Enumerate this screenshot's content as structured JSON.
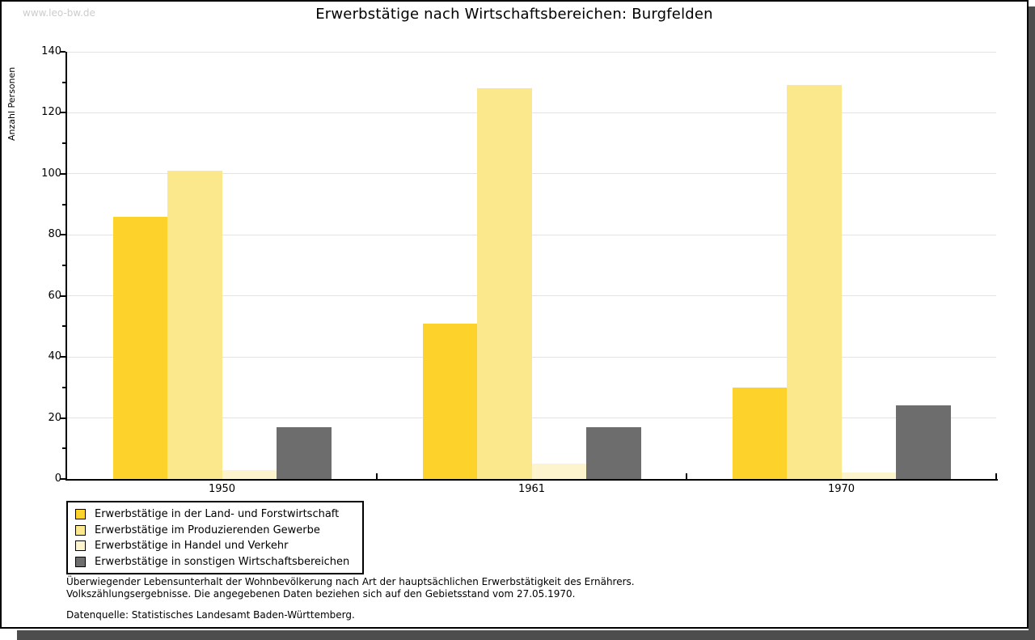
{
  "watermark": "www.leo-bw.de",
  "chart_data": {
    "type": "bar",
    "title": "Erwerbstätige nach Wirtschaftsbereichen: Burgfelden",
    "ylabel": "Anzahl Personen",
    "xlabel": "",
    "categories": [
      "1950",
      "1961",
      "1970"
    ],
    "series": [
      {
        "name": "Erwerbstätige in der Land- und Forstwirtschaft",
        "color": "#fcd22b",
        "values": [
          86,
          51,
          30
        ]
      },
      {
        "name": "Erwerbstätige im Produzierenden Gewerbe",
        "color": "#fbe78c",
        "values": [
          101,
          128,
          129
        ]
      },
      {
        "name": "Erwerbstätige in Handel und Verkehr",
        "color": "#fdf4ce",
        "values": [
          3,
          5,
          2
        ]
      },
      {
        "name": "Erwerbstätige in sonstigen Wirtschaftsbereichen",
        "color": "#6d6d6d",
        "values": [
          17,
          17,
          24
        ]
      }
    ],
    "ylim": [
      0,
      140
    ],
    "ytick_step": 20,
    "minor_tick_step": 10,
    "grid": "horizontal",
    "legend_position": "bottom-left",
    "gridline_color": "#e3e3e3"
  },
  "footnotes": {
    "line1": "Überwiegender Lebensunterhalt der Wohnbevölkerung nach Art der hauptsächlichen Erwerbstätigkeit des Ernährers.",
    "line2": "Volkszählungsergebnisse. Die angegebenen Daten beziehen sich auf den Gebietsstand vom 27.05.1970.",
    "source": "Datenquelle: Statistisches Landesamt Baden-Württemberg."
  }
}
